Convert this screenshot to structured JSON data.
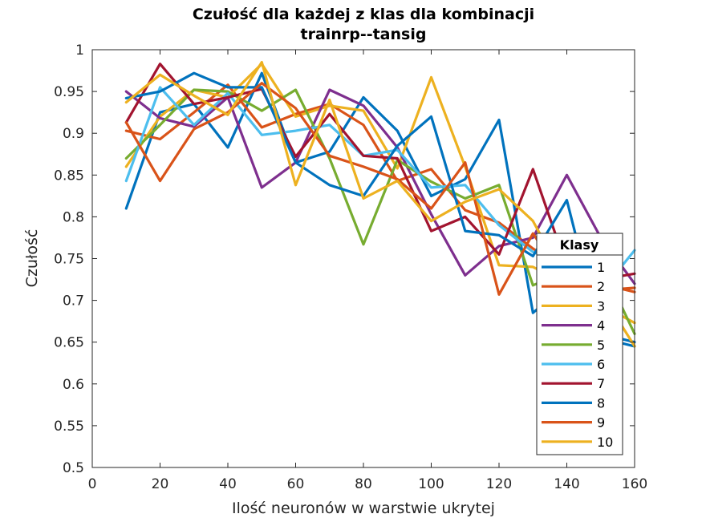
{
  "chart_data": {
    "type": "line",
    "title": [
      "Czułość dla każdej z klas dla kombinacji",
      "trainrp--tansig"
    ],
    "xlabel": "Ilość neuronów w warstwie ukrytej",
    "ylabel": "Czułość",
    "xlim": [
      0,
      160
    ],
    "ylim": [
      0.5,
      1
    ],
    "xticks": [
      "0",
      "20",
      "40",
      "60",
      "80",
      "100",
      "120",
      "140",
      "160"
    ],
    "yticks": [
      "0.5",
      "0.55",
      "0.6",
      "0.65",
      "0.7",
      "0.75",
      "0.8",
      "0.85",
      "0.9",
      "0.95",
      "1"
    ],
    "grid": false,
    "legend_title": "Klasy",
    "legend_position": "right",
    "x": [
      10,
      20,
      30,
      40,
      50,
      60,
      70,
      80,
      90,
      100,
      110,
      120,
      130,
      140,
      150,
      160
    ],
    "series": [
      {
        "name": "1",
        "color": "#0072BD",
        "values": [
          0.81,
          0.925,
          0.935,
          0.883,
          0.972,
          0.865,
          0.878,
          0.943,
          0.903,
          0.825,
          0.845,
          0.916,
          0.685,
          0.72,
          0.655,
          0.645
        ]
      },
      {
        "name": "2",
        "color": "#D95319",
        "values": [
          0.903,
          0.893,
          0.925,
          0.958,
          0.907,
          0.923,
          0.935,
          0.91,
          0.843,
          0.857,
          0.808,
          0.793,
          0.762,
          0.737,
          0.712,
          0.715
        ]
      },
      {
        "name": "3",
        "color": "#EDB120",
        "values": [
          0.86,
          0.92,
          0.952,
          0.943,
          0.983,
          0.92,
          0.933,
          0.927,
          0.858,
          0.967,
          0.86,
          0.742,
          0.74,
          0.72,
          0.695,
          0.673
        ]
      },
      {
        "name": "4",
        "color": "#7E2F8E",
        "values": [
          0.95,
          0.918,
          0.908,
          0.943,
          0.835,
          0.865,
          0.952,
          0.933,
          0.883,
          0.803,
          0.73,
          0.765,
          0.775,
          0.85,
          0.775,
          0.72
        ]
      },
      {
        "name": "5",
        "color": "#77AC30",
        "values": [
          0.87,
          0.91,
          0.952,
          0.95,
          0.927,
          0.952,
          0.87,
          0.767,
          0.868,
          0.842,
          0.822,
          0.838,
          0.718,
          0.735,
          0.745,
          0.66
        ]
      },
      {
        "name": "6",
        "color": "#4DBEEE",
        "values": [
          0.843,
          0.955,
          0.91,
          0.948,
          0.898,
          0.903,
          0.91,
          0.873,
          0.88,
          0.835,
          0.838,
          0.79,
          0.758,
          0.743,
          0.71,
          0.76
        ]
      },
      {
        "name": "7",
        "color": "#A2142F",
        "values": [
          0.913,
          0.983,
          0.935,
          0.943,
          0.953,
          0.872,
          0.923,
          0.873,
          0.87,
          0.783,
          0.8,
          0.755,
          0.857,
          0.74,
          0.725,
          0.732
        ]
      },
      {
        "name": "8",
        "color": "#0072BD",
        "values": [
          0.942,
          0.95,
          0.972,
          0.955,
          0.955,
          0.865,
          0.838,
          0.825,
          0.885,
          0.92,
          0.783,
          0.778,
          0.753,
          0.82,
          0.66,
          0.65
        ]
      },
      {
        "name": "9",
        "color": "#D95319",
        "values": [
          0.913,
          0.843,
          0.905,
          0.925,
          0.96,
          0.93,
          0.873,
          0.86,
          0.845,
          0.81,
          0.865,
          0.707,
          0.78,
          0.72,
          0.72,
          0.71
        ]
      },
      {
        "name": "10",
        "color": "#EDB120",
        "values": [
          0.937,
          0.97,
          0.945,
          0.922,
          0.985,
          0.838,
          0.94,
          0.822,
          0.843,
          0.795,
          0.818,
          0.833,
          0.795,
          0.72,
          0.71,
          0.645
        ]
      }
    ]
  }
}
